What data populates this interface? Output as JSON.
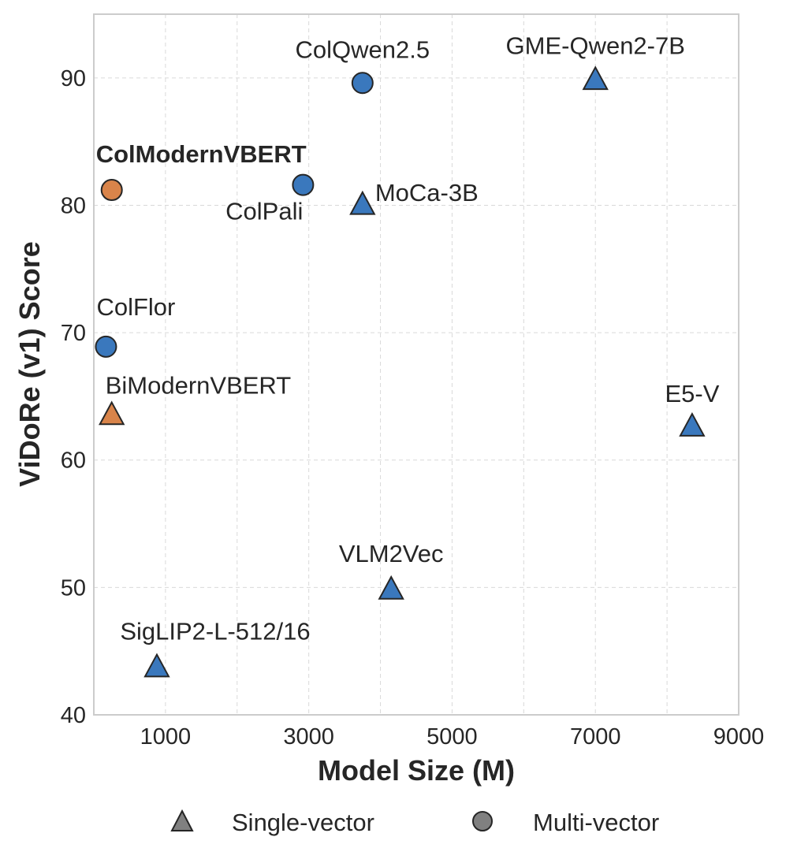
{
  "chart_data": {
    "type": "scatter",
    "xlabel": "Model Size (M)",
    "ylabel": "ViDoRe (v1) Score",
    "xlim": [
      0,
      9000
    ],
    "ylim": [
      40,
      95
    ],
    "xticks": [
      1000,
      3000,
      5000,
      7000,
      9000
    ],
    "yticks": [
      40,
      50,
      60,
      70,
      80,
      90
    ],
    "grid": true,
    "legend": {
      "placement": "bottom-center",
      "entries": [
        {
          "label": "Single-vector",
          "marker": "triangle"
        },
        {
          "label": "Multi-vector",
          "marker": "circle"
        }
      ]
    },
    "colors": {
      "default": "#3A78BD",
      "highlight": "#D9844A",
      "edge": "#262626",
      "grid": "#D9D9D9",
      "frame": "#CCCCCC"
    },
    "points": [
      {
        "label": "ColModernVBERT",
        "x": 250,
        "y": 81.2,
        "marker": "circle",
        "highlight": true,
        "bold": true
      },
      {
        "label": "BiModernVBERT",
        "x": 250,
        "y": 63.6,
        "marker": "triangle",
        "highlight": true,
        "bold": false
      },
      {
        "label": "ColFlor",
        "x": 170,
        "y": 68.9,
        "marker": "circle",
        "highlight": false,
        "bold": false
      },
      {
        "label": "ColPali",
        "x": 2920,
        "y": 81.6,
        "marker": "circle",
        "highlight": false,
        "bold": false
      },
      {
        "label": "ColQwen2.5",
        "x": 3750,
        "y": 89.6,
        "marker": "circle",
        "highlight": false,
        "bold": false
      },
      {
        "label": "MoCa-3B",
        "x": 3750,
        "y": 80.1,
        "marker": "triangle",
        "highlight": false,
        "bold": false
      },
      {
        "label": "GME-Qwen2-7B",
        "x": 7000,
        "y": 89.9,
        "marker": "triangle",
        "highlight": false,
        "bold": false
      },
      {
        "label": "E5-V",
        "x": 8350,
        "y": 62.7,
        "marker": "triangle",
        "highlight": false,
        "bold": false
      },
      {
        "label": "VLM2Vec",
        "x": 4150,
        "y": 49.9,
        "marker": "triangle",
        "highlight": false,
        "bold": false
      },
      {
        "label": "SigLIP2-L-512/16",
        "x": 880,
        "y": 43.8,
        "marker": "triangle",
        "highlight": false,
        "bold": false
      }
    ]
  }
}
